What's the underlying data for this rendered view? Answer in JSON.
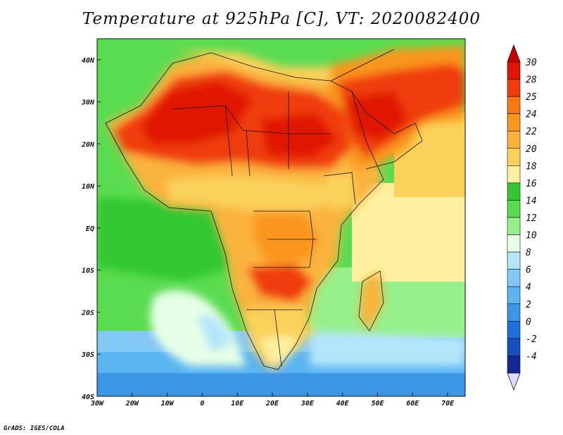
{
  "title": "Temperature at 925hPa [C], VT: 2020082400",
  "credit": "GrADS: IGES/COLA",
  "map": {
    "lon_range": [
      -30,
      75
    ],
    "lat_range": [
      -40,
      45
    ],
    "lon_ticks": [
      {
        "value": -30,
        "label": "30W"
      },
      {
        "value": -20,
        "label": "20W"
      },
      {
        "value": -10,
        "label": "10W"
      },
      {
        "value": 0,
        "label": "0"
      },
      {
        "value": 10,
        "label": "10E"
      },
      {
        "value": 20,
        "label": "20E"
      },
      {
        "value": 30,
        "label": "30E"
      },
      {
        "value": 40,
        "label": "40E"
      },
      {
        "value": 50,
        "label": "50E"
      },
      {
        "value": 60,
        "label": "60E"
      },
      {
        "value": 70,
        "label": "70E"
      }
    ],
    "lat_ticks": [
      {
        "value": 40,
        "label": "40N"
      },
      {
        "value": 30,
        "label": "30N"
      },
      {
        "value": 20,
        "label": "20N"
      },
      {
        "value": 10,
        "label": "10N"
      },
      {
        "value": 0,
        "label": "EQ"
      },
      {
        "value": -10,
        "label": "10S"
      },
      {
        "value": -20,
        "label": "20S"
      },
      {
        "value": -30,
        "label": "30S"
      },
      {
        "value": -40,
        "label": "40S"
      }
    ]
  },
  "colorbar": {
    "levels": [
      {
        "label": "30",
        "color": "#e01400"
      },
      {
        "label": "28",
        "color": "#f03c0a"
      },
      {
        "label": "25",
        "color": "#fa7814"
      },
      {
        "label": "24",
        "color": "#fa961e"
      },
      {
        "label": "22",
        "color": "#fab43c"
      },
      {
        "label": "20",
        "color": "#fad25a"
      },
      {
        "label": "18",
        "color": "#fff0a0"
      },
      {
        "label": "16",
        "color": "#32c832"
      },
      {
        "label": "14",
        "color": "#5adc50"
      },
      {
        "label": "12",
        "color": "#96f08c"
      },
      {
        "label": "10",
        "color": "#e6ffe6"
      },
      {
        "label": "8",
        "color": "#b4e6fa"
      },
      {
        "label": "6",
        "color": "#82c8f5"
      },
      {
        "label": "4",
        "color": "#5ab4f0"
      },
      {
        "label": "2",
        "color": "#3c96e6"
      },
      {
        "label": "0",
        "color": "#1e6edc"
      },
      {
        "label": "-2",
        "color": "#1450be"
      },
      {
        "label": "-4",
        "color": "#0f2896"
      }
    ],
    "top_arrow_color": "#c80000",
    "bottom_arrow_color": "#dcdcff"
  }
}
